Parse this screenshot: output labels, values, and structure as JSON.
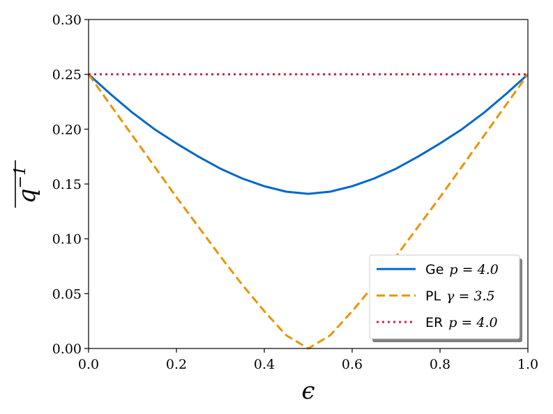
{
  "chart_data": {
    "type": "line",
    "title": "",
    "xlabel": "ϵ",
    "ylabel_base": "q",
    "ylabel_exp": "−1",
    "xlim": [
      0.0,
      1.0
    ],
    "ylim": [
      0.0,
      0.3
    ],
    "xticks": [
      0.0,
      0.2,
      0.4,
      0.6,
      0.8,
      1.0
    ],
    "yticks": [
      0.0,
      0.05,
      0.1,
      0.15,
      0.2,
      0.25,
      0.3
    ],
    "xtick_labels": [
      "0.0",
      "0.2",
      "0.4",
      "0.6",
      "0.8",
      "1.0"
    ],
    "ytick_labels": [
      "0.00",
      "0.05",
      "0.10",
      "0.15",
      "0.20",
      "0.25",
      "0.30"
    ],
    "grid": false,
    "legend_position": "lower-right",
    "series": [
      {
        "name": "Ge p = 4.0",
        "legend_prefix": "Ge",
        "legend_math": "p = 4.0",
        "color": "#0066cc",
        "style": "solid",
        "x": [
          0.0,
          0.05,
          0.1,
          0.15,
          0.2,
          0.25,
          0.3,
          0.35,
          0.4,
          0.45,
          0.5,
          0.55,
          0.6,
          0.65,
          0.7,
          0.75,
          0.8,
          0.85,
          0.9,
          0.95,
          1.0
        ],
        "values": [
          0.25,
          0.232,
          0.215,
          0.2,
          0.187,
          0.175,
          0.164,
          0.155,
          0.148,
          0.143,
          0.141,
          0.143,
          0.148,
          0.155,
          0.164,
          0.175,
          0.187,
          0.2,
          0.215,
          0.232,
          0.25
        ]
      },
      {
        "name": "PL γ = 3.5",
        "legend_prefix": "PL",
        "legend_math": "γ = 3.5",
        "color": "#e69500",
        "style": "dashed",
        "x": [
          0.0,
          0.05,
          0.1,
          0.15,
          0.2,
          0.25,
          0.3,
          0.35,
          0.4,
          0.45,
          0.5,
          0.55,
          0.6,
          0.65,
          0.7,
          0.75,
          0.8,
          0.85,
          0.9,
          0.95,
          1.0
        ],
        "values": [
          0.25,
          0.222,
          0.194,
          0.166,
          0.138,
          0.111,
          0.084,
          0.058,
          0.034,
          0.012,
          0.0,
          0.012,
          0.034,
          0.058,
          0.084,
          0.111,
          0.138,
          0.166,
          0.194,
          0.222,
          0.25
        ]
      },
      {
        "name": "ER p = 4.0",
        "legend_prefix": "ER",
        "legend_math": "p = 4.0",
        "color": "#d0213b",
        "style": "dotted",
        "x": [
          0.0,
          1.0
        ],
        "values": [
          0.25,
          0.25
        ]
      }
    ]
  }
}
